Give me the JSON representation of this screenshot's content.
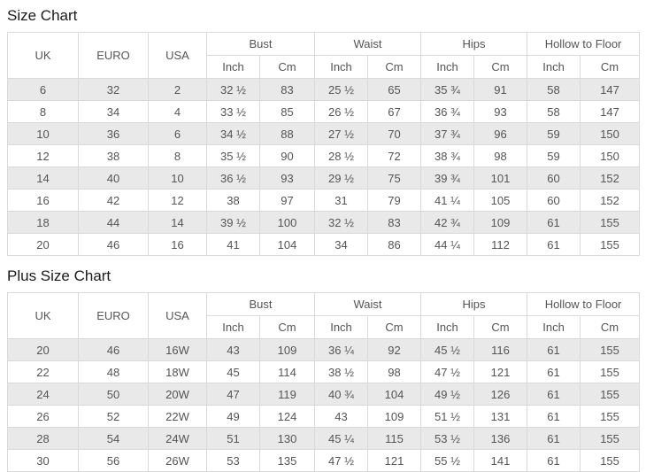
{
  "colors": {
    "stripe_row_bg": "#e9e9e9",
    "table_border": "#d9d9d9",
    "cell_text": "#555555",
    "title_text": "#1a1a1a",
    "page_bg": "#ffffff"
  },
  "tables": [
    {
      "title": "Size Chart",
      "simple_headers": [
        "UK",
        "EURO",
        "USA"
      ],
      "group_headers": [
        "Bust",
        "Waist",
        "Hips",
        "Hollow to Floor"
      ],
      "sub_headers": [
        "Inch",
        "Cm"
      ],
      "rows": [
        [
          "6",
          "32",
          "2",
          "32 ½",
          "83",
          "25 ½",
          "65",
          "35 ¾",
          "91",
          "58",
          "147"
        ],
        [
          "8",
          "34",
          "4",
          "33 ½",
          "85",
          "26 ½",
          "67",
          "36 ¾",
          "93",
          "58",
          "147"
        ],
        [
          "10",
          "36",
          "6",
          "34 ½",
          "88",
          "27 ½",
          "70",
          "37 ¾",
          "96",
          "59",
          "150"
        ],
        [
          "12",
          "38",
          "8",
          "35 ½",
          "90",
          "28 ½",
          "72",
          "38 ¾",
          "98",
          "59",
          "150"
        ],
        [
          "14",
          "40",
          "10",
          "36 ½",
          "93",
          "29 ½",
          "75",
          "39 ¾",
          "101",
          "60",
          "152"
        ],
        [
          "16",
          "42",
          "12",
          "38",
          "97",
          "31",
          "79",
          "41 ¼",
          "105",
          "60",
          "152"
        ],
        [
          "18",
          "44",
          "14",
          "39 ½",
          "100",
          "32 ½",
          "83",
          "42 ¾",
          "109",
          "61",
          "155"
        ],
        [
          "20",
          "46",
          "16",
          "41",
          "104",
          "34",
          "86",
          "44 ¼",
          "112",
          "61",
          "155"
        ]
      ]
    },
    {
      "title": "Plus Size Chart",
      "simple_headers": [
        "UK",
        "EURO",
        "USA"
      ],
      "group_headers": [
        "Bust",
        "Waist",
        "Hips",
        "Hollow to Floor"
      ],
      "sub_headers": [
        "Inch",
        "Cm"
      ],
      "rows": [
        [
          "20",
          "46",
          "16W",
          "43",
          "109",
          "36 ¼",
          "92",
          "45 ½",
          "116",
          "61",
          "155"
        ],
        [
          "22",
          "48",
          "18W",
          "45",
          "114",
          "38 ½",
          "98",
          "47 ½",
          "121",
          "61",
          "155"
        ],
        [
          "24",
          "50",
          "20W",
          "47",
          "119",
          "40 ¾",
          "104",
          "49 ½",
          "126",
          "61",
          "155"
        ],
        [
          "26",
          "52",
          "22W",
          "49",
          "124",
          "43",
          "109",
          "51 ½",
          "131",
          "61",
          "155"
        ],
        [
          "28",
          "54",
          "24W",
          "51",
          "130",
          "45 ¼",
          "115",
          "53 ½",
          "136",
          "61",
          "155"
        ],
        [
          "30",
          "56",
          "26W",
          "53",
          "135",
          "47 ½",
          "121",
          "55 ½",
          "141",
          "61",
          "155"
        ]
      ]
    }
  ]
}
